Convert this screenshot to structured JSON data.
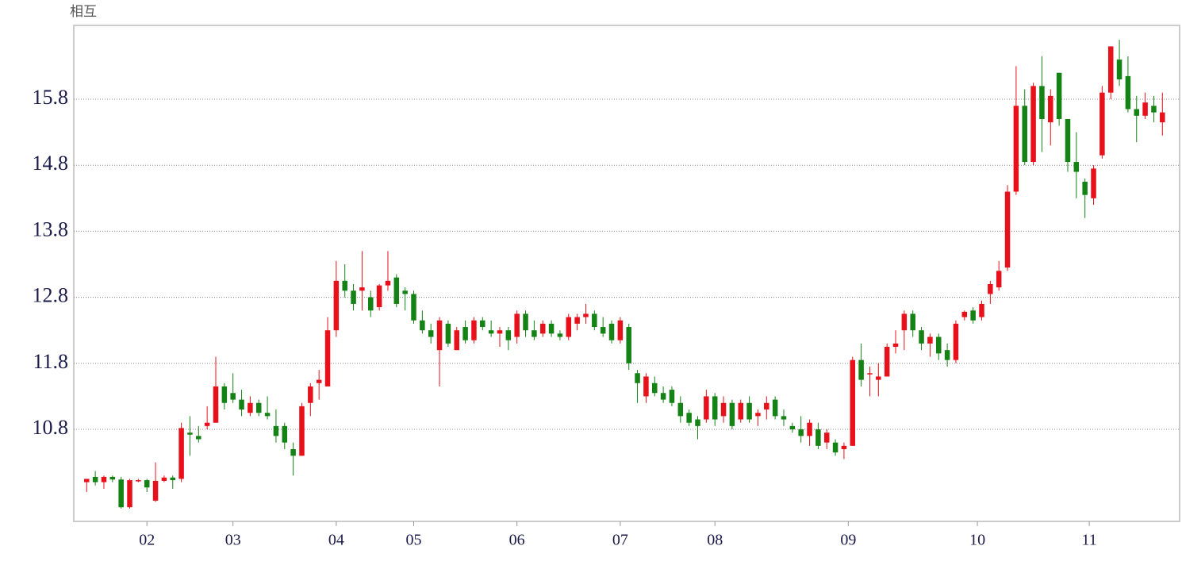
{
  "chart_data": {
    "type": "candlestick",
    "title": "相互",
    "x": [
      0,
      1,
      2,
      3,
      4,
      5,
      6,
      7,
      8,
      9,
      10,
      11,
      12,
      13,
      14,
      15,
      16,
      17,
      18,
      19,
      20,
      21,
      22,
      23,
      24,
      25,
      26,
      27,
      28,
      29,
      30,
      31,
      32,
      33,
      34,
      35,
      36,
      37,
      38,
      39,
      40,
      41,
      42,
      43,
      44,
      45,
      46,
      47,
      48,
      49,
      50,
      51,
      52,
      53,
      54,
      55,
      56,
      57,
      58,
      59,
      60,
      61,
      62,
      63,
      64,
      65,
      66,
      67,
      68,
      69,
      70,
      71,
      72,
      73,
      74,
      75,
      76,
      77,
      78,
      79,
      80,
      81,
      82,
      83,
      84,
      85,
      86,
      87,
      88,
      89,
      90,
      91,
      92,
      93,
      94,
      95,
      96,
      97,
      98,
      99,
      100,
      101,
      102,
      103,
      104,
      105,
      106,
      107,
      108,
      109,
      110,
      111,
      112,
      113,
      114,
      115,
      116,
      117,
      118,
      119,
      120,
      121,
      122,
      123,
      124,
      125
    ],
    "open": [
      10.0,
      10.08,
      10.0,
      10.08,
      10.04,
      9.62,
      10.03,
      10.03,
      9.72,
      10.02,
      10.07,
      10.05,
      10.75,
      10.7,
      10.85,
      10.9,
      11.45,
      11.35,
      11.25,
      11.05,
      11.2,
      11.05,
      10.85,
      10.85,
      10.5,
      10.4,
      11.2,
      11.5,
      11.45,
      12.3,
      13.05,
      12.9,
      12.9,
      12.8,
      12.65,
      12.98,
      13.1,
      12.9,
      12.85,
      12.45,
      12.3,
      12.0,
      12.4,
      12.0,
      12.35,
      12.15,
      12.45,
      12.3,
      12.25,
      12.3,
      12.2,
      12.55,
      12.3,
      12.25,
      12.4,
      12.25,
      12.2,
      12.4,
      12.5,
      12.55,
      12.35,
      12.4,
      12.15,
      12.35,
      11.65,
      11.3,
      11.5,
      11.35,
      11.4,
      11.2,
      11.05,
      10.95,
      10.95,
      11.3,
      11.0,
      11.2,
      10.95,
      11.2,
      11.0,
      11.1,
      11.25,
      11.0,
      10.85,
      10.8,
      10.7,
      10.8,
      10.6,
      10.6,
      10.5,
      10.55,
      11.85,
      11.65,
      11.55,
      11.6,
      12.05,
      12.3,
      12.55,
      12.3,
      12.1,
      12.2,
      12.0,
      11.85,
      12.5,
      12.6,
      12.5,
      12.85,
      12.95,
      13.25,
      14.4,
      15.7,
      14.85,
      16.0,
      15.45,
      16.2,
      15.5,
      14.85,
      14.55,
      14.3,
      14.95,
      15.9,
      16.4,
      16.15,
      15.65,
      15.55,
      15.7,
      15.45
    ],
    "high": [
      10.05,
      10.17,
      10.1,
      10.1,
      10.08,
      10.05,
      10.05,
      10.05,
      10.3,
      10.1,
      10.1,
      10.9,
      11.0,
      10.85,
      11.15,
      11.9,
      11.5,
      11.65,
      11.4,
      11.3,
      11.25,
      11.3,
      11.1,
      10.9,
      10.6,
      11.2,
      11.5,
      11.7,
      12.5,
      13.35,
      13.3,
      13.0,
      13.5,
      12.9,
      13.0,
      13.5,
      13.15,
      12.95,
      12.9,
      12.6,
      12.4,
      12.5,
      12.45,
      12.35,
      12.45,
      12.5,
      12.5,
      12.45,
      12.35,
      12.35,
      12.6,
      12.6,
      12.45,
      12.45,
      12.45,
      12.3,
      12.55,
      12.55,
      12.7,
      12.6,
      12.5,
      12.45,
      12.5,
      12.4,
      11.7,
      11.65,
      11.6,
      11.45,
      11.45,
      11.3,
      11.1,
      11.0,
      11.4,
      11.35,
      11.3,
      11.25,
      11.25,
      11.3,
      11.1,
      11.3,
      11.3,
      11.1,
      10.9,
      11.0,
      10.95,
      10.9,
      10.8,
      10.65,
      10.6,
      11.9,
      12.1,
      11.75,
      11.8,
      12.1,
      12.3,
      12.6,
      12.6,
      12.35,
      12.25,
      12.25,
      12.1,
      12.45,
      12.6,
      12.65,
      12.75,
      13.05,
      13.35,
      14.5,
      16.3,
      15.95,
      16.05,
      16.45,
      15.95,
      16.2,
      15.5,
      15.3,
      14.6,
      14.8,
      16.0,
      16.6,
      16.7,
      16.45,
      15.85,
      15.9,
      15.85,
      15.9
    ],
    "low": [
      9.85,
      9.95,
      9.9,
      10.0,
      9.6,
      9.6,
      10.0,
      9.85,
      9.7,
      10.0,
      9.9,
      10.0,
      10.4,
      10.6,
      10.8,
      10.9,
      11.1,
      11.2,
      11.0,
      11.0,
      11.0,
      10.95,
      10.6,
      10.5,
      10.1,
      10.4,
      11.0,
      11.25,
      11.45,
      12.2,
      12.8,
      12.6,
      12.6,
      12.5,
      12.6,
      12.9,
      12.65,
      12.6,
      12.4,
      12.25,
      12.1,
      11.45,
      12.05,
      12.0,
      12.1,
      12.1,
      12.3,
      12.2,
      12.05,
      12.0,
      12.1,
      12.2,
      12.15,
      12.2,
      12.2,
      12.15,
      12.15,
      12.3,
      12.4,
      12.3,
      12.2,
      12.1,
      12.1,
      11.7,
      11.2,
      11.2,
      11.3,
      11.2,
      11.15,
      10.9,
      10.85,
      10.65,
      10.9,
      10.85,
      10.9,
      10.8,
      10.9,
      10.9,
      10.85,
      10.95,
      10.95,
      10.85,
      10.75,
      10.6,
      10.55,
      10.5,
      10.5,
      10.4,
      10.35,
      10.55,
      11.45,
      11.3,
      11.3,
      11.6,
      11.95,
      12.0,
      12.2,
      12.0,
      11.9,
      11.85,
      11.75,
      11.8,
      12.45,
      12.4,
      12.45,
      12.7,
      12.9,
      13.2,
      14.35,
      14.8,
      14.8,
      15.0,
      15.1,
      15.4,
      14.7,
      14.3,
      14.0,
      14.2,
      14.9,
      15.8,
      16.0,
      15.6,
      15.15,
      15.5,
      15.45,
      15.25
    ],
    "close": [
      10.05,
      10.0,
      10.08,
      10.04,
      9.62,
      10.03,
      10.03,
      9.92,
      10.02,
      10.07,
      10.03,
      10.82,
      10.72,
      10.65,
      10.9,
      11.45,
      11.2,
      11.25,
      11.1,
      11.2,
      11.05,
      11.0,
      10.7,
      10.6,
      10.4,
      11.15,
      11.45,
      11.55,
      12.3,
      13.05,
      12.9,
      12.7,
      12.95,
      12.6,
      12.98,
      13.05,
      12.7,
      12.85,
      12.45,
      12.3,
      12.2,
      12.45,
      12.1,
      12.3,
      12.15,
      12.45,
      12.35,
      12.25,
      12.3,
      12.15,
      12.55,
      12.3,
      12.2,
      12.4,
      12.25,
      12.2,
      12.5,
      12.5,
      12.55,
      12.35,
      12.25,
      12.15,
      12.45,
      11.8,
      11.5,
      11.6,
      11.35,
      11.25,
      11.2,
      11.0,
      10.9,
      10.85,
      11.3,
      10.95,
      11.2,
      10.85,
      11.2,
      10.95,
      11.05,
      11.2,
      11.0,
      10.95,
      10.8,
      10.7,
      10.9,
      10.55,
      10.75,
      10.45,
      10.55,
      11.85,
      11.55,
      11.65,
      11.6,
      12.05,
      12.1,
      12.55,
      12.3,
      12.1,
      12.2,
      11.95,
      11.85,
      12.4,
      12.58,
      12.45,
      12.7,
      13.0,
      13.2,
      14.4,
      15.7,
      14.85,
      16.0,
      15.5,
      15.85,
      15.5,
      14.85,
      14.7,
      14.35,
      14.75,
      15.9,
      16.6,
      16.1,
      15.65,
      15.55,
      15.75,
      15.6,
      15.6
    ],
    "up_color": "#e8101a",
    "down_color": "#148214",
    "xlim": [
      -1.5,
      127
    ],
    "xticks": [
      {
        "value": 7,
        "label": "02"
      },
      {
        "value": 17,
        "label": "03"
      },
      {
        "value": 29,
        "label": "04"
      },
      {
        "value": 38,
        "label": "05"
      },
      {
        "value": 50,
        "label": "06"
      },
      {
        "value": 62,
        "label": "07"
      },
      {
        "value": 73,
        "label": "08"
      },
      {
        "value": 88.5,
        "label": "09"
      },
      {
        "value": 103.5,
        "label": "10"
      },
      {
        "value": 116.5,
        "label": "11"
      }
    ],
    "ylim": [
      9.406,
      16.918
    ],
    "yticks": [
      10.8,
      11.8,
      12.8,
      13.8,
      14.8,
      15.8
    ],
    "grid": true
  }
}
